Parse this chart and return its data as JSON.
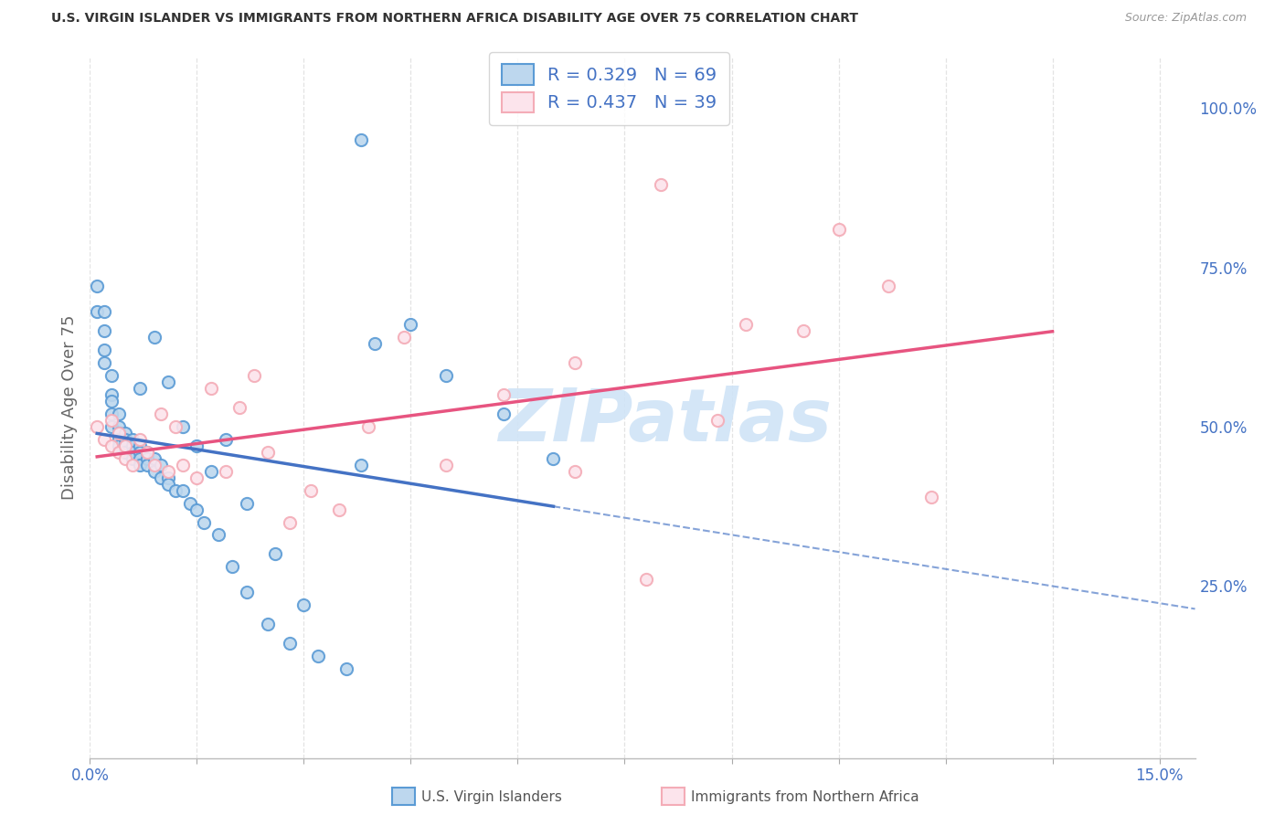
{
  "title": "U.S. VIRGIN ISLANDER VS IMMIGRANTS FROM NORTHERN AFRICA DISABILITY AGE OVER 75 CORRELATION CHART",
  "source": "Source: ZipAtlas.com",
  "ylabel": "Disability Age Over 75",
  "xlim": [
    0.0,
    0.155
  ],
  "ylim": [
    -0.02,
    1.08
  ],
  "right_yticks": [
    0.25,
    0.5,
    0.75,
    1.0
  ],
  "right_yticklabels": [
    "25.0%",
    "50.0%",
    "75.0%",
    "100.0%"
  ],
  "xtick_vals": [
    0.0,
    0.015,
    0.03,
    0.045,
    0.06,
    0.075,
    0.09,
    0.105,
    0.12,
    0.135,
    0.15
  ],
  "xticklabels": [
    "0.0%",
    "",
    "",
    "",
    "",
    "",
    "",
    "",
    "",
    "",
    "15.0%"
  ],
  "legend_text1": "R = 0.329   N = 69",
  "legend_text2": "R = 0.437   N = 39",
  "blue_edge": "#5b9bd5",
  "blue_face": "#bdd7ee",
  "pink_edge": "#f4acb7",
  "pink_face": "#fce4ec",
  "blue_line": "#4472c4",
  "pink_line": "#e75480",
  "watermark": "ZIPatlas",
  "watermark_color": "#d0e4f7",
  "grid_color": "#dddddd",
  "bottom_label1": "U.S. Virgin Islanders",
  "bottom_label2": "Immigrants from Northern Africa",
  "blue_x": [
    0.001,
    0.001,
    0.002,
    0.002,
    0.002,
    0.002,
    0.003,
    0.003,
    0.003,
    0.003,
    0.003,
    0.004,
    0.004,
    0.004,
    0.004,
    0.004,
    0.004,
    0.005,
    0.005,
    0.005,
    0.005,
    0.005,
    0.005,
    0.006,
    0.006,
    0.006,
    0.006,
    0.007,
    0.007,
    0.007,
    0.007,
    0.008,
    0.008,
    0.008,
    0.009,
    0.009,
    0.01,
    0.01,
    0.011,
    0.011,
    0.012,
    0.013,
    0.014,
    0.015,
    0.016,
    0.018,
    0.02,
    0.022,
    0.025,
    0.028,
    0.032,
    0.036,
    0.04,
    0.045,
    0.05,
    0.058,
    0.065,
    0.007,
    0.009,
    0.011,
    0.013,
    0.015,
    0.017,
    0.019,
    0.022,
    0.026,
    0.03,
    0.038,
    0.038
  ],
  "blue_y": [
    0.68,
    0.72,
    0.65,
    0.62,
    0.68,
    0.6,
    0.58,
    0.55,
    0.54,
    0.52,
    0.5,
    0.52,
    0.5,
    0.49,
    0.48,
    0.48,
    0.47,
    0.49,
    0.48,
    0.47,
    0.47,
    0.46,
    0.46,
    0.48,
    0.47,
    0.46,
    0.45,
    0.47,
    0.46,
    0.45,
    0.44,
    0.46,
    0.45,
    0.44,
    0.45,
    0.43,
    0.44,
    0.42,
    0.42,
    0.41,
    0.4,
    0.4,
    0.38,
    0.37,
    0.35,
    0.33,
    0.28,
    0.24,
    0.19,
    0.16,
    0.14,
    0.12,
    0.63,
    0.66,
    0.58,
    0.52,
    0.45,
    0.56,
    0.64,
    0.57,
    0.5,
    0.47,
    0.43,
    0.48,
    0.38,
    0.3,
    0.22,
    0.95,
    0.44
  ],
  "pink_x": [
    0.001,
    0.002,
    0.003,
    0.003,
    0.004,
    0.004,
    0.005,
    0.005,
    0.006,
    0.007,
    0.008,
    0.009,
    0.01,
    0.011,
    0.012,
    0.013,
    0.015,
    0.017,
    0.019,
    0.021,
    0.023,
    0.025,
    0.028,
    0.031,
    0.035,
    0.039,
    0.044,
    0.05,
    0.058,
    0.068,
    0.08,
    0.092,
    0.105,
    0.118,
    0.068,
    0.078,
    0.088,
    0.1,
    0.112
  ],
  "pink_y": [
    0.5,
    0.48,
    0.47,
    0.51,
    0.46,
    0.49,
    0.47,
    0.45,
    0.44,
    0.48,
    0.46,
    0.44,
    0.52,
    0.43,
    0.5,
    0.44,
    0.42,
    0.56,
    0.43,
    0.53,
    0.58,
    0.46,
    0.35,
    0.4,
    0.37,
    0.5,
    0.64,
    0.44,
    0.55,
    0.6,
    0.88,
    0.66,
    0.81,
    0.39,
    0.43,
    0.26,
    0.51,
    0.65,
    0.72
  ]
}
